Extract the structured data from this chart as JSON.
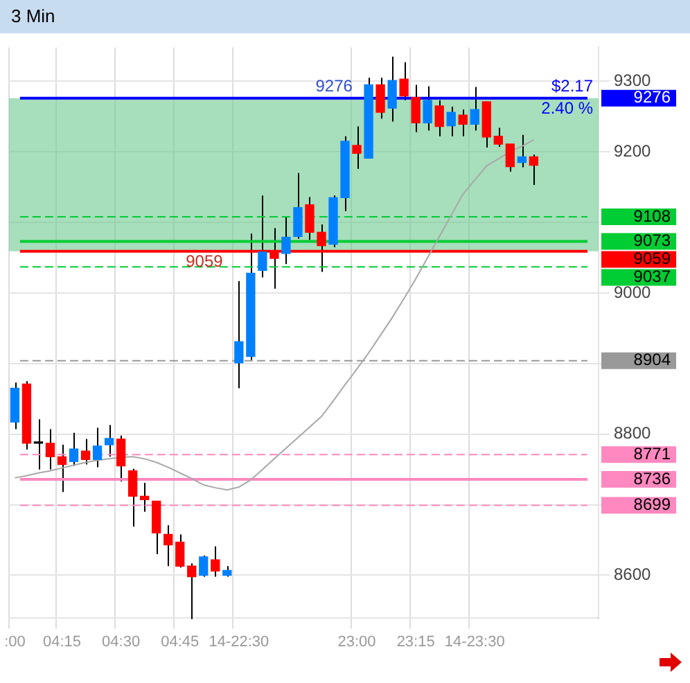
{
  "chart_data": {
    "type": "candlestick",
    "title": "3 Min",
    "categories": [
      ":00",
      null,
      null,
      null,
      "04:15",
      null,
      null,
      null,
      null,
      "04:30",
      null,
      null,
      null,
      null,
      "04:45",
      null,
      null,
      null,
      null,
      "14-22:30",
      null,
      null,
      null,
      null,
      null,
      null,
      null,
      null,
      null,
      "23:00",
      null,
      null,
      null,
      null,
      "23:15",
      null,
      null,
      null,
      null,
      "14-23:30",
      null,
      null,
      null,
      null,
      null
    ],
    "ohlc": [
      [
        8817,
        8873,
        8807,
        8865
      ],
      [
        8871,
        8875,
        8778,
        8787
      ],
      [
        8787,
        8821,
        8750,
        8787
      ],
      [
        8787,
        8807,
        8750,
        8768
      ],
      [
        8768,
        8785,
        8718,
        8757
      ],
      [
        8761,
        8802,
        8755,
        8779
      ],
      [
        8776,
        8793,
        8757,
        8764
      ],
      [
        8764,
        8809,
        8753,
        8783
      ],
      [
        8785,
        8813,
        8768,
        8794
      ],
      [
        8793,
        8798,
        8733,
        8755
      ],
      [
        8748,
        8751,
        8669,
        8712
      ],
      [
        8712,
        8731,
        8690,
        8707
      ],
      [
        8705,
        8705,
        8630,
        8660
      ],
      [
        8658,
        8671,
        8613,
        8643
      ],
      [
        8647,
        8658,
        8611,
        8613
      ],
      [
        8613,
        8617,
        8538,
        8598
      ],
      [
        8600,
        8628,
        8598,
        8626
      ],
      [
        8622,
        8641,
        8598,
        8606
      ],
      [
        8600,
        8613,
        8598,
        8607
      ],
      [
        8901,
        9017,
        8865,
        8931
      ],
      [
        8910,
        9084,
        8905,
        9028
      ],
      [
        9032,
        9138,
        9022,
        9058
      ],
      [
        9058,
        9092,
        9006,
        9049
      ],
      [
        9056,
        9107,
        9041,
        9079
      ],
      [
        9080,
        9170,
        9077,
        9121
      ],
      [
        9125,
        9136,
        9075,
        9086
      ],
      [
        9086,
        9097,
        9030,
        9067
      ],
      [
        9069,
        9138,
        9065,
        9135
      ],
      [
        9135,
        9222,
        9116,
        9215
      ],
      [
        9209,
        9236,
        9176,
        9198
      ],
      [
        9191,
        9305,
        9191,
        9295
      ],
      [
        9295,
        9305,
        9247,
        9256
      ],
      [
        9262,
        9335,
        9243,
        9301
      ],
      [
        9303,
        9327,
        9273,
        9279
      ],
      [
        9277,
        9295,
        9228,
        9241
      ],
      [
        9241,
        9293,
        9230,
        9273
      ],
      [
        9265,
        9273,
        9222,
        9236
      ],
      [
        9237,
        9264,
        9222,
        9256
      ],
      [
        9252,
        9260,
        9222,
        9239
      ],
      [
        9239,
        9292,
        9230,
        9260
      ],
      [
        9271,
        9271,
        9206,
        9221
      ],
      [
        9222,
        9234,
        9207,
        9211
      ],
      [
        9211,
        9211,
        9172,
        9179
      ],
      [
        9185,
        9224,
        9178,
        9193
      ],
      [
        9193,
        9196,
        9153,
        9181
      ]
    ],
    "colors": [
      "#0080ff",
      "#ff0000",
      "#000000",
      "#ff0000",
      "#ff0000",
      "#0080ff",
      "#ff0000",
      "#0080ff",
      "#0080ff",
      "#ff0000",
      "#ff0000",
      "#ff0000",
      "#ff0000",
      "#ff0000",
      "#ff0000",
      "#ff0000",
      "#0080ff",
      "#ff0000",
      "#0080ff",
      "#0080ff",
      "#0080ff",
      "#0080ff",
      "#ff0000",
      "#0080ff",
      "#0080ff",
      "#ff0000",
      "#ff0000",
      "#0080ff",
      "#0080ff",
      "#ff0000",
      "#0080ff",
      "#ff0000",
      "#0080ff",
      "#ff0000",
      "#ff0000",
      "#0080ff",
      "#ff0000",
      "#0080ff",
      "#ff0000",
      "#0080ff",
      "#ff0000",
      "#ff0000",
      "#ff0000",
      "#0080ff",
      "#ff0000"
    ],
    "series": [
      {
        "type": "line",
        "color": "#a8a8a8",
        "values": [
          8738,
          8741,
          8745,
          8748,
          8752,
          8756,
          8760,
          8763,
          8765,
          8767,
          8768,
          8765,
          8760,
          8753,
          8745,
          8737,
          8728,
          8724,
          8721,
          8725,
          8735,
          8750,
          8765,
          8780,
          8795,
          8810,
          8825,
          8847,
          8870,
          8892,
          8915,
          8940,
          8965,
          8992,
          9020,
          9050,
          9080,
          9110,
          9140,
          9160,
          9180,
          9190,
          9200,
          9208,
          9217
        ]
      }
    ],
    "ylim": [
      8540,
      9348
    ],
    "yticks": [
      8600,
      {
        "value": 8700,
        "label": null
      },
      8800,
      {
        "value": 8900,
        "label": null
      },
      9000,
      {
        "value": 9100,
        "label": null
      },
      9200,
      9300
    ],
    "grid": true,
    "ref_lines": [
      {
        "axis": "y",
        "value": 9276,
        "label": "9276",
        "color": "#0000ff",
        "line_style": "solid"
      },
      {
        "axis": "y",
        "value": 9108,
        "label": "9108",
        "color": "#00cc33",
        "line_style": "dashed"
      },
      {
        "axis": "y",
        "value": 9073,
        "label": "9073",
        "color": "#00cc33",
        "line_style": "solid"
      },
      {
        "axis": "y",
        "value": 9059,
        "label": "9059",
        "color": "#ff0000",
        "line_style": "solid"
      },
      {
        "axis": "y",
        "value": 9037,
        "label": "9037",
        "color": "#00cc33",
        "line_style": "dashed"
      },
      {
        "axis": "y",
        "value": 8904,
        "label": "8904",
        "color": "#999999",
        "line_style": "dashed"
      },
      {
        "axis": "y",
        "value": 8771,
        "label": "8771",
        "color": "#ff88c0",
        "line_style": "dashed"
      },
      {
        "axis": "y",
        "value": 8736,
        "label": "8736",
        "color": "#ff88c0",
        "line_style": "solid"
      },
      {
        "axis": "y",
        "value": 8699,
        "label": "8699",
        "color": "#ff88c0",
        "line_style": "dashed"
      }
    ],
    "bands": [
      {
        "axis": "y",
        "from": 9059,
        "to": 9276,
        "color": "#6cc890"
      }
    ],
    "annotations": [
      {
        "text": "9276",
        "y": 9276
      },
      {
        "text": "9059",
        "y": 9059
      },
      {
        "text": "$2.17",
        "y": 9276
      },
      {
        "text": "2.40 %",
        "y": 9276
      }
    ]
  }
}
